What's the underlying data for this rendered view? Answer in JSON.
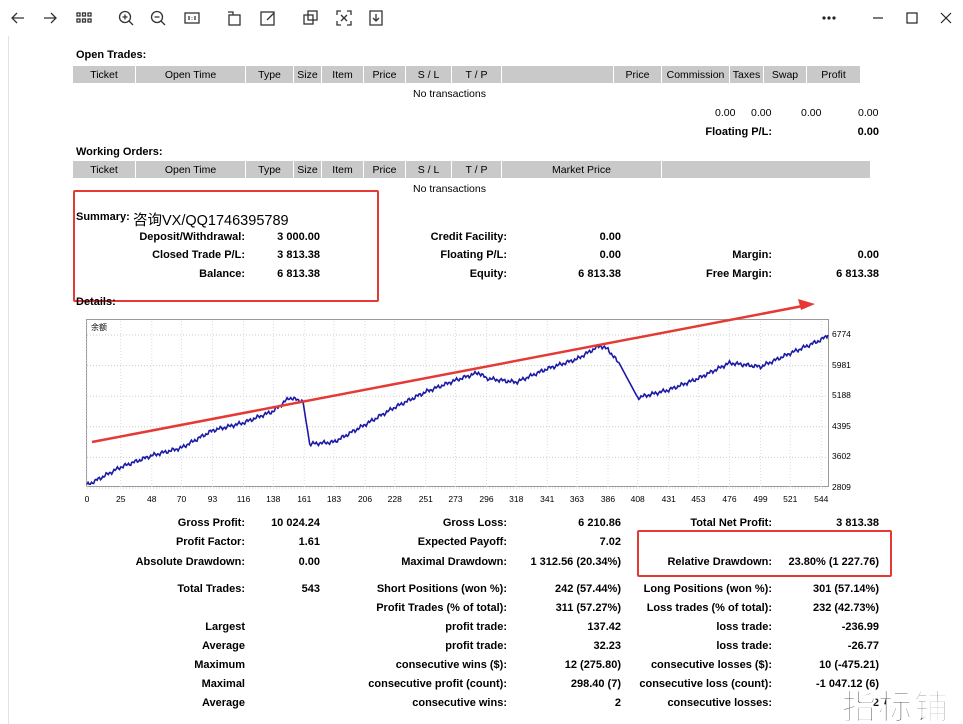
{
  "open_trades": {
    "title": "Open Trades:",
    "columns": [
      "Ticket",
      "Open Time",
      "Type",
      "Size",
      "Item",
      "Price",
      "S / L",
      "T / P",
      "",
      "Price",
      "Commission",
      "Taxes",
      "Swap",
      "Profit"
    ],
    "empty_text": "No transactions",
    "totals": [
      "0.00",
      "0.00",
      "0.00",
      "0.00"
    ],
    "floating_label": "Floating P/L:",
    "floating_value": "0.00"
  },
  "working_orders": {
    "title": "Working Orders:",
    "columns": [
      "Ticket",
      "Open Time",
      "Type",
      "Size",
      "Item",
      "Price",
      "S / L",
      "T / P",
      "Market Price",
      ""
    ],
    "empty_text": "No transactions"
  },
  "summary": {
    "title": "Summary:",
    "annotation": "咨询VX/QQ1746395789",
    "deposit_label": "Deposit/Withdrawal:",
    "deposit_value": "3 000.00",
    "closed_label": "Closed Trade P/L:",
    "closed_value": "3 813.38",
    "balance_label": "Balance:",
    "balance_value": "6 813.38",
    "credit_label": "Credit Facility:",
    "credit_value": "0.00",
    "floating_label": "Floating P/L:",
    "floating_value": "0.00",
    "equity_label": "Equity:",
    "equity_value": "6 813.38",
    "margin_label": "Margin:",
    "margin_value": "0.00",
    "free_margin_label": "Free Margin:",
    "free_margin_value": "6 813.38"
  },
  "details": {
    "title": "Details:"
  },
  "chart_data": {
    "type": "line",
    "caption": "余额",
    "x": [
      0,
      25,
      48,
      70,
      93,
      116,
      138,
      150,
      160,
      165,
      183,
      206,
      228,
      251,
      273,
      290,
      296,
      318,
      341,
      363,
      380,
      386,
      395,
      408,
      431,
      453,
      476,
      499,
      521,
      544,
      549
    ],
    "y": [
      2880,
      3350,
      3650,
      3850,
      4300,
      4500,
      4800,
      5150,
      5050,
      3950,
      4000,
      4450,
      4900,
      5300,
      5600,
      5800,
      5650,
      5550,
      5900,
      6150,
      6500,
      6400,
      6000,
      5150,
      5350,
      5650,
      6050,
      5950,
      6300,
      6650,
      6774
    ],
    "yticks": [
      "6774",
      "5981",
      "5188",
      "4395",
      "3602",
      "2809"
    ],
    "xticks": [
      "0",
      "25",
      "48",
      "70",
      "93",
      "116",
      "138",
      "161",
      "183",
      "206",
      "228",
      "251",
      "273",
      "296",
      "318",
      "341",
      "363",
      "386",
      "408",
      "431",
      "453",
      "476",
      "499",
      "521",
      "544"
    ],
    "ylim": [
      2809,
      6774
    ],
    "xlim": [
      0,
      549
    ],
    "line_color": "#1a1aa6"
  },
  "results": {
    "gross_profit_label": "Gross Profit:",
    "gross_profit": "10 024.24",
    "gross_loss_label": "Gross Loss:",
    "gross_loss": "6 210.86",
    "net_profit_label": "Total Net Profit:",
    "net_profit": "3 813.38",
    "profit_factor_label": "Profit Factor:",
    "profit_factor": "1.61",
    "expected_payoff_label": "Expected Payoff:",
    "expected_payoff": "7.02",
    "abs_dd_label": "Absolute Drawdown:",
    "abs_dd": "0.00",
    "max_dd_label": "Maximal Drawdown:",
    "max_dd": "1 312.56 (20.34%)",
    "rel_dd_label": "Relative Drawdown:",
    "rel_dd": "23.80% (1 227.76)",
    "total_trades_label": "Total Trades:",
    "total_trades": "543",
    "short_label": "Short Positions (won %):",
    "short": "242 (57.44%)",
    "long_label": "Long Positions (won %):",
    "long": "301 (57.14%)",
    "profit_trades_label": "Profit Trades (% of total):",
    "profit_trades": "311 (57.27%)",
    "loss_trades_label": "Loss trades (% of total):",
    "loss_trades": "232 (42.73%)",
    "largest_label": "Largest",
    "largest_profit_label": "profit trade:",
    "largest_profit": "137.42",
    "largest_loss_label": "loss trade:",
    "largest_loss": "-236.99",
    "average_label": "Average",
    "average_profit_label": "profit trade:",
    "average_profit": "32.23",
    "average_loss_label": "loss trade:",
    "average_loss": "-26.77",
    "maximum_label": "Maximum",
    "cons_wins_label": "consecutive wins ($):",
    "cons_wins": "12 (275.80)",
    "cons_losses_label": "consecutive losses ($):",
    "cons_losses": "10 (-475.21)",
    "maximal_label": "Maximal",
    "cons_profit_label": "consecutive profit (count):",
    "cons_profit": "298.40 (7)",
    "cons_loss_label": "consecutive loss (count):",
    "cons_loss": "-1 047.12 (6)",
    "average2_label": "Average",
    "avg_cons_wins_label": "consecutive wins:",
    "avg_cons_wins": "2",
    "avg_cons_losses_label": "consecutive losses:",
    "avg_cons_losses": "2"
  },
  "watermark": "指标铺"
}
